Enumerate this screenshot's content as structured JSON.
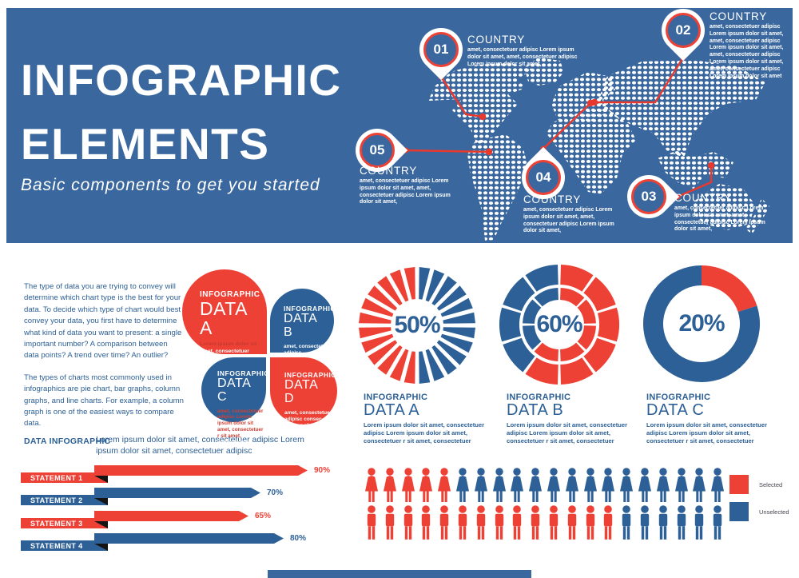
{
  "banner": {
    "title_line1": "INFOGRAPHIC",
    "title_line2": "ELEMENTS",
    "subtitle": "Basic components to get you started"
  },
  "colors": {
    "red": "#ee4136",
    "blue": "#2d6096",
    "banner_blue": "#3a689e",
    "ink": "#151515"
  },
  "map": {
    "markers": [
      {
        "id": "01",
        "label": "COUNTRY",
        "text": "amet, consectetuer adipisc Lorem ipsum dolor sit amet, amet, consectetuer adipisc Lorem ipsum dolor sit amet,"
      },
      {
        "id": "02",
        "label": "COUNTRY",
        "text": "amet, consectetuer adipisc Lorem ipsum dolor sit amet, amet, consectetuer adipisc Lorem ipsum dolor sit amet, amet, consectetuer adipisc Lorem ipsum dolor sit amet, amet, consectetuer adipisc Lorem ipsum dolor sit amet"
      },
      {
        "id": "03",
        "label": "COUNTRY",
        "text": "amet, consectetuer adipisc Lorem ipsum dolor sit amet, amet, consectetuer adipisc Lorem ipsum dolor sit amet,"
      },
      {
        "id": "04",
        "label": "COUNTRY",
        "text": "amet, consectetuer adipisc Lorem ipsum dolor sit amet, amet, consectetuer adipisc Lorem ipsum dolor sit amet,"
      },
      {
        "id": "05",
        "label": "COUNTRY",
        "text": "amet, consectetuer adipisc Lorem ipsum dolor sit amet, amet, consectetuer adipisc Lorem ipsum dolor sit amet,"
      }
    ]
  },
  "intro": {
    "para1": "The type of data you are trying to convey will determine which chart type is the best for your data. To decide which type of chart would best convey your data, you first have to determine what kind of data you want to present: a single important number? A comparison between data points? A trend over time? An outlier?",
    "para2": "The types of charts most commonly used in infographics are pie chart, bar graphs, column graphs, and line charts. For example, a column graph is one of the easiest ways to compare data."
  },
  "petals": [
    {
      "id": "A",
      "kicker": "INFOGRAPHIC",
      "title": "DATA A",
      "lead": "Lorem ipsum dolor sit",
      "lead_color": "#c43a2f",
      "body": "amet, consectetuer adipisc Lorem ipsum dolor sit amet, consectetuer sit amet, consectetuer",
      "color": "#ee4136"
    },
    {
      "id": "B",
      "kicker": "INFOGRAPHIC",
      "title": "DATA B",
      "lead": "",
      "lead_color": "",
      "body": "amet, consectetuer adipisc consectetuer r sit amet",
      "color": "#2d6096"
    },
    {
      "id": "C",
      "kicker": "INFOGRAPHIC",
      "title": "DATA C",
      "lead": "amet, consectetuer adipisc Lorem ipsum dolor sit amet, consectetuer r sit amet,",
      "lead_color": "#cd4237",
      "body": "consectetuer",
      "color": "#2d6096"
    },
    {
      "id": "D",
      "kicker": "INFOGRAPHIC",
      "title": "DATA D",
      "lead": "",
      "lead_color": "",
      "body": "amet, consectetuer adipisc consec- tetuer r sit amet",
      "color": "#ee4136"
    }
  ],
  "data_infographic": {
    "heading": "DATA INFOGRAPHIC",
    "description": "Lorem ipsum dolor sit amet, consectetuer adipisc Lorem ipsum dolor sit amet, consectetuer adipisc"
  },
  "chart_data": [
    {
      "type": "pie",
      "style": "ray-burst",
      "kicker": "INFOGRAPHIC",
      "name": "DATA A",
      "center_label": "50%",
      "rays": 24,
      "slices": [
        {
          "label": "Selected",
          "value": 50,
          "color": "#ee4136"
        },
        {
          "label": "Unselected",
          "value": 50,
          "color": "#2d6096"
        }
      ],
      "description": "Lorem ipsum dolor sit amet, consectetuer adipisc Lorem ipsum dolor sit amet, consectetuer r sit amet, consectetuer"
    },
    {
      "type": "pie",
      "style": "segmented-double-ring",
      "kicker": "INFOGRAPHIC",
      "name": "DATA B",
      "center_label": "60%",
      "outer_segments": 10,
      "inner_segments": 8,
      "slices": [
        {
          "label": "Selected",
          "value": 60,
          "color": "#ee4136"
        },
        {
          "label": "Unselected",
          "value": 40,
          "color": "#2d6096"
        }
      ],
      "description": "Lorem ipsum dolor sit amet, consectetuer adipisc Lorem ipsum dolor sit amet, consectetuer r sit amet, consectetuer"
    },
    {
      "type": "pie",
      "style": "donut",
      "kicker": "INFOGRAPHIC",
      "name": "DATA C",
      "center_label": "20%",
      "slices": [
        {
          "label": "Selected",
          "value": 20,
          "color": "#ee4136"
        },
        {
          "label": "Unselected",
          "value": 80,
          "color": "#2d6096"
        }
      ],
      "description": "Lorem ipsum dolor sit amet, consectetuer adipisc Lorem ipsum dolor sit amet, consectetuer r sit amet, consectetuer"
    },
    {
      "type": "bar",
      "name": "statements",
      "unit": "%",
      "categories": [
        "STATEMENT 1",
        "STATEMENT 2",
        "STATEMENT 3",
        "STATEMENT 4"
      ],
      "values": [
        90,
        70,
        65,
        80
      ],
      "value_labels": [
        "90%",
        "70%",
        "65%",
        "80%"
      ],
      "colors": [
        "#ee4136",
        "#2d6096",
        "#ee4136",
        "#2d6096"
      ]
    },
    {
      "type": "pictogram",
      "name": "people",
      "rows": [
        {
          "icon": "female",
          "total": 20,
          "selected": 5
        },
        {
          "icon": "male",
          "total": 20,
          "selected": 14
        }
      ],
      "legend": [
        {
          "label": "Selected",
          "color": "#ee4136"
        },
        {
          "label": "Unselected",
          "color": "#2d6096"
        }
      ]
    }
  ]
}
